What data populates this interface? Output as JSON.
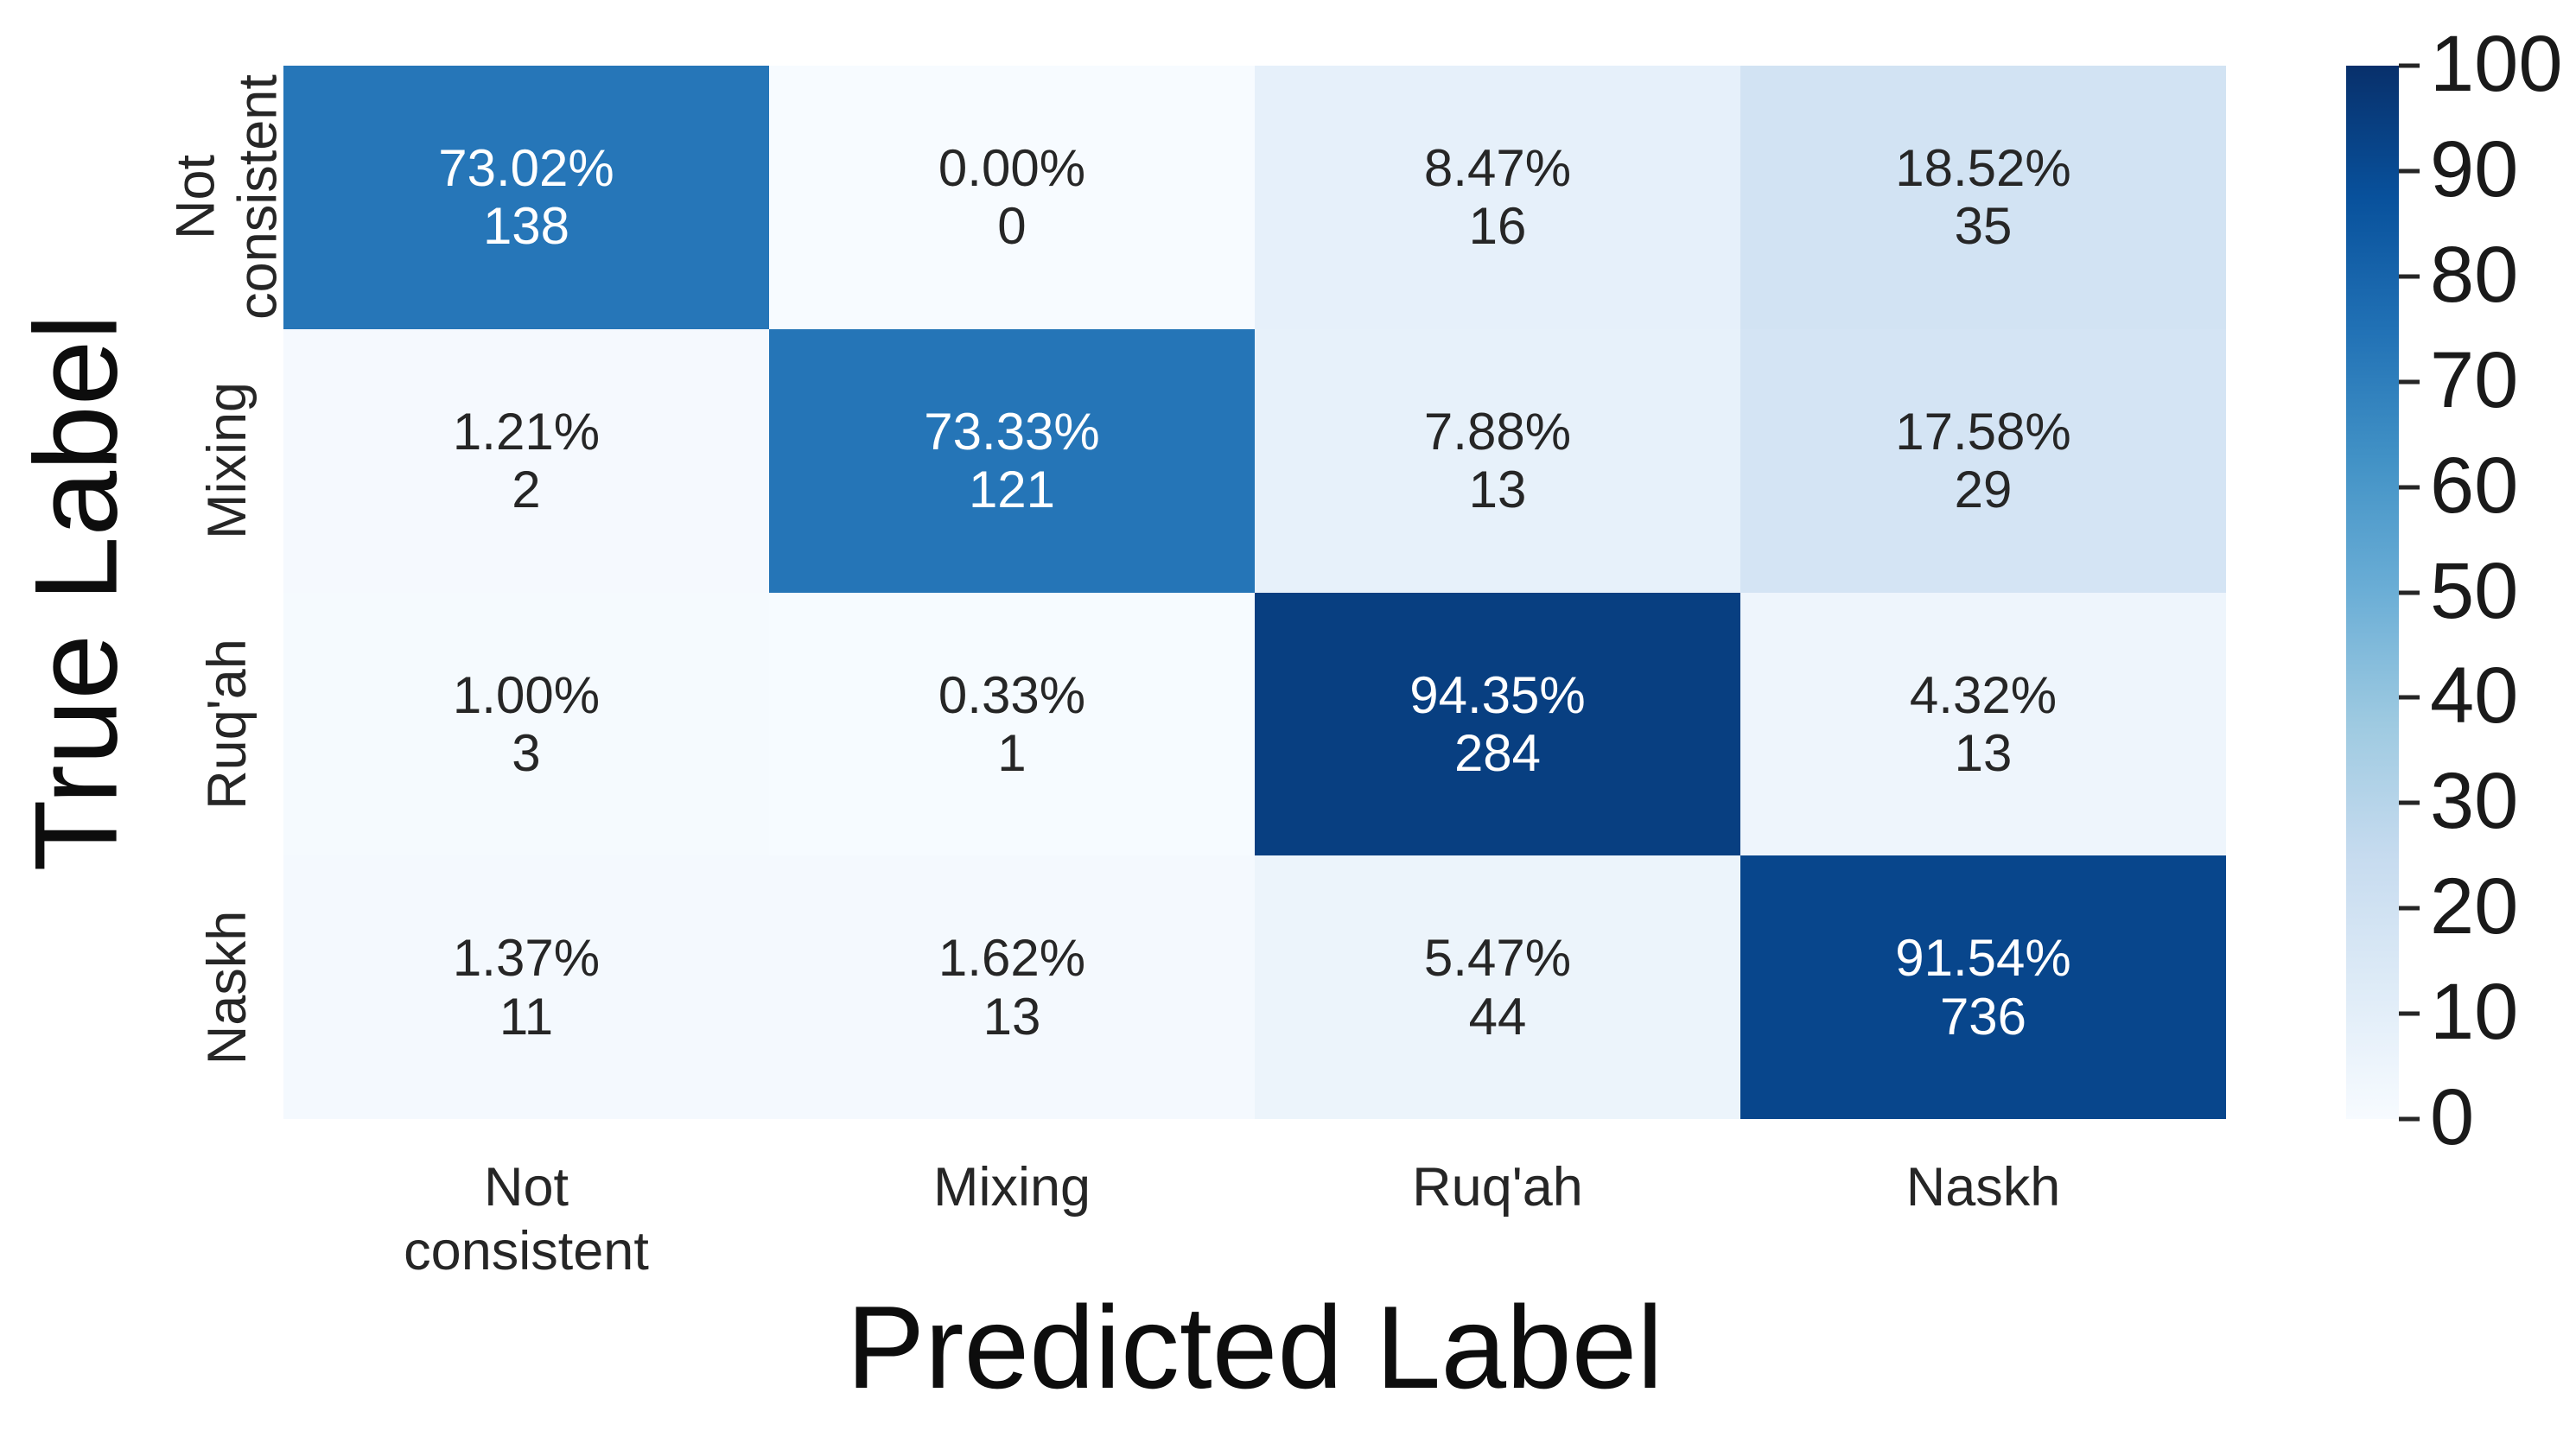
{
  "figure_title": "",
  "chart_data": {
    "type": "heatmap",
    "title": "",
    "xlabel": "Predicted Label",
    "ylabel": "True Label",
    "x_categories": [
      "Not\nconsistent",
      "Mixing",
      "Ruq'ah",
      "Naskh"
    ],
    "y_categories": [
      "Not\nconsistent",
      "Mixing",
      "Ruq'ah",
      "Naskh"
    ],
    "cell_value_unit": "percent",
    "percent_matrix": [
      [
        73.02,
        0.0,
        8.47,
        18.52
      ],
      [
        1.21,
        73.33,
        7.88,
        17.58
      ],
      [
        1.0,
        0.33,
        94.35,
        4.32
      ],
      [
        1.37,
        1.62,
        5.47,
        91.54
      ]
    ],
    "count_matrix": [
      [
        138,
        0,
        16,
        35
      ],
      [
        2,
        121,
        13,
        29
      ],
      [
        3,
        1,
        284,
        13
      ],
      [
        11,
        13,
        44,
        736
      ]
    ],
    "colorbar": {
      "min": 0,
      "max": 100,
      "ticks": [
        100,
        90,
        80,
        70,
        60,
        50,
        40,
        30,
        20,
        10,
        0
      ],
      "position": "right"
    },
    "legend": "none",
    "grid": "off",
    "colors": {
      "colormap_name": "Blues",
      "colormap_stops": [
        [
          0.0,
          "#f7fbff"
        ],
        [
          0.125,
          "#deebf7"
        ],
        [
          0.25,
          "#c6dbef"
        ],
        [
          0.375,
          "#9ecae1"
        ],
        [
          0.5,
          "#6baed6"
        ],
        [
          0.625,
          "#4292c6"
        ],
        [
          0.75,
          "#2171b5"
        ],
        [
          0.875,
          "#08519c"
        ],
        [
          1.0,
          "#08306b"
        ]
      ],
      "text_on_dark": "#ffffff",
      "text_on_light": "#262626",
      "white_text_threshold": 50,
      "background": "#ffffff"
    }
  }
}
